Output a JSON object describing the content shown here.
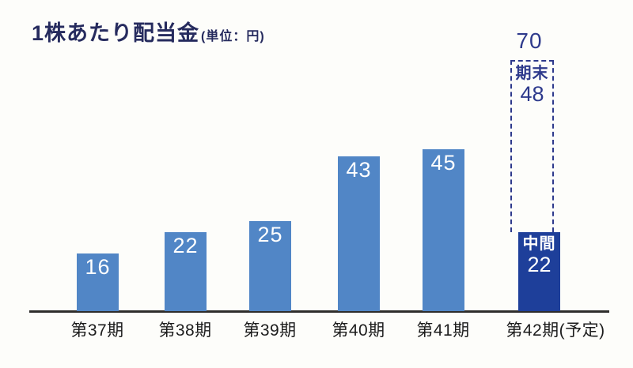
{
  "chart_data": {
    "type": "bar",
    "title": "1株あたり配当金",
    "unit_label": "(単位：円)",
    "categories": [
      "第37期",
      "第38期",
      "第39期",
      "第40期",
      "第41期",
      "第42期(予定)"
    ],
    "values": [
      16,
      22,
      25,
      43,
      45,
      70
    ],
    "ylim": [
      0,
      75
    ],
    "grid": false,
    "legend": "none",
    "bars": [
      {
        "category": "第37期",
        "value": 16
      },
      {
        "category": "第38期",
        "value": 22
      },
      {
        "category": "第39期",
        "value": 25
      },
      {
        "category": "第40期",
        "value": 43
      },
      {
        "category": "第41期",
        "value": 45
      }
    ],
    "forecast_bar": {
      "category": "第42期(予定)",
      "total": 70,
      "segments": [
        {
          "label": "中間",
          "value": 22,
          "style": "solid"
        },
        {
          "label": "期末",
          "value": 48,
          "style": "dashed-forecast"
        }
      ]
    },
    "colors": {
      "bar": "#5186c6",
      "interim_bar": "#1e3f9a",
      "forecast_outline": "#2e3a8c",
      "title": "#262b5e",
      "value_text": "#ffffff",
      "annotation_text": "#2e3a8c",
      "axis_line": "#2e2d2b",
      "tick_text": "#1c1c1c"
    }
  }
}
